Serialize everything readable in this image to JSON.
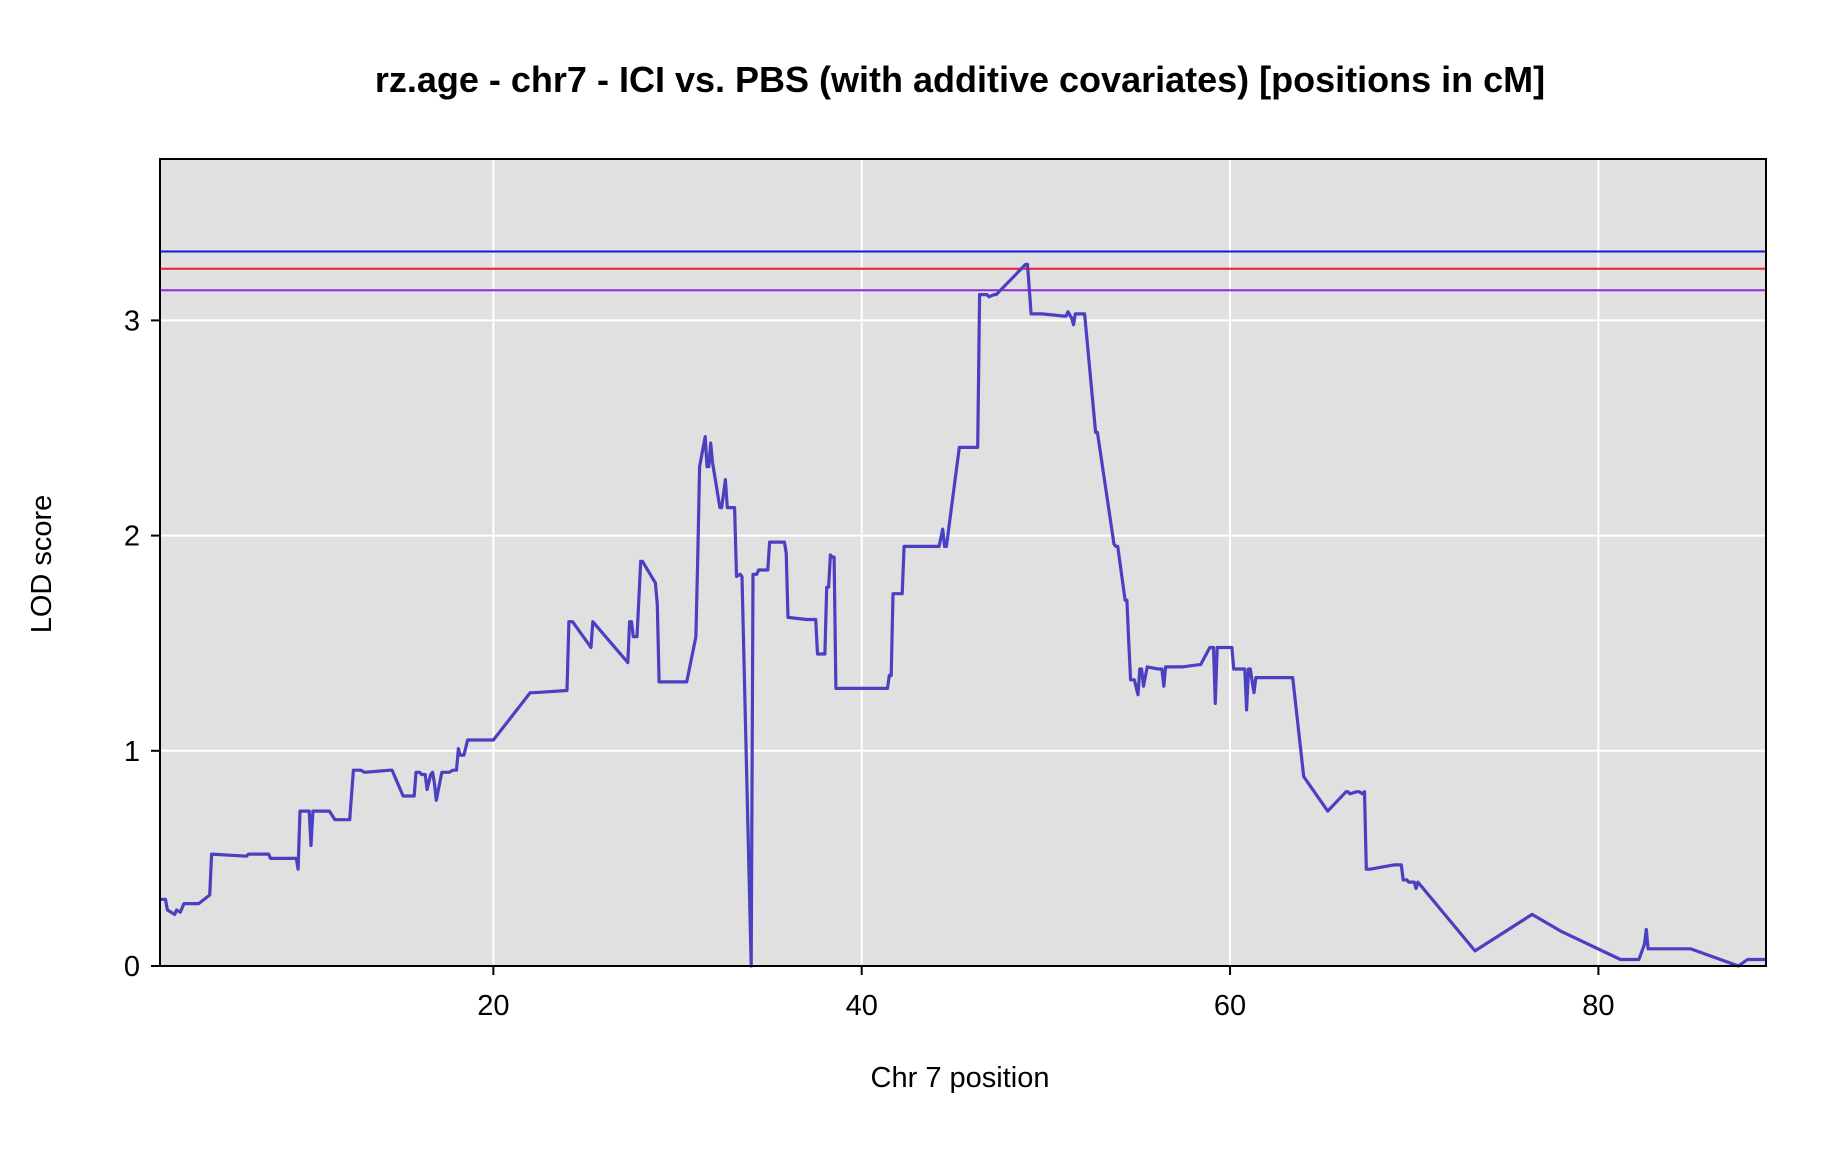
{
  "chart_data": {
    "type": "line",
    "title": "rz.age - chr7 - ICI vs. PBS (with additive covariates) [positions in cM]",
    "xlabel": "Chr 7 position",
    "ylabel": "LOD score",
    "xlim": [
      1.9,
      89.1
    ],
    "ylim": [
      0,
      3.75
    ],
    "xticks": [
      20,
      40,
      60,
      80
    ],
    "yticks": [
      0,
      1,
      2,
      3
    ],
    "grid": true,
    "background_color": "#e0e0e0",
    "grid_color": "#ffffff",
    "thresholds": [
      {
        "value": 3.32,
        "color": "#1a1ad6"
      },
      {
        "value": 3.24,
        "color": "#e8202a"
      },
      {
        "value": 3.14,
        "color": "#8a2be2"
      }
    ],
    "series": [
      {
        "color": "#4b3fc2",
        "x": [
          1.9,
          2.2,
          2.3,
          2.5,
          2.7,
          2.8,
          3.0,
          3.2,
          4.0,
          4.6,
          4.7,
          6.6,
          6.7,
          7.8,
          7.9,
          9.3,
          9.4,
          9.5,
          9.7,
          10.0,
          10.1,
          10.2,
          11.1,
          11.4,
          12.2,
          12.4,
          12.8,
          13.0,
          14.4,
          14.5,
          15.1,
          15.2,
          15.7,
          15.8,
          16.0,
          16.1,
          16.3,
          16.4,
          16.6,
          16.7,
          16.8,
          16.9,
          17.2,
          17.3,
          17.5,
          17.6,
          17.8,
          18.0,
          18.1,
          18.2,
          18.4,
          18.6,
          19.8,
          20.0,
          22.0,
          22.1,
          22.2,
          24.0,
          24.1,
          24.2,
          24.3,
          25.3,
          25.4,
          27.3,
          27.4,
          27.5,
          27.6,
          27.7,
          27.8,
          28.0,
          28.1,
          28.8,
          28.9,
          29.0,
          30.5,
          31.0,
          31.1,
          31.2,
          31.5,
          31.6,
          31.7,
          31.8,
          31.9,
          32.3,
          32.4,
          32.6,
          32.7,
          32.8,
          33.1,
          33.2,
          33.4,
          33.5,
          34.0,
          34.1,
          34.2,
          34.3,
          34.4,
          34.5,
          34.9,
          35.0,
          35.8,
          35.9,
          36.0,
          37.0,
          37.5,
          37.6,
          37.8,
          38.0,
          38.1,
          38.2,
          38.3,
          38.4,
          38.5,
          38.6,
          38.7,
          39.0,
          40.0,
          40.1,
          41.3,
          41.4,
          41.5,
          41.6,
          41.7,
          41.8,
          42.2,
          42.3,
          44.0,
          44.1,
          44.2,
          44.4,
          44.5,
          44.6,
          45.3,
          45.4,
          45.5,
          46.3,
          46.4,
          46.5,
          46.8,
          46.9,
          47.2,
          47.3,
          48.9,
          49.0,
          49.2,
          49.5,
          49.7,
          49.8,
          51.0,
          51.1,
          51.2,
          51.4,
          51.5,
          51.6,
          52.0,
          52.1,
          52.7,
          52.8,
          53.7,
          53.8,
          53.9,
          54.3,
          54.4,
          54.5,
          54.6,
          54.7,
          54.8,
          55.0,
          55.1,
          55.2,
          55.3,
          55.5,
          56.1,
          56.2,
          56.3,
          56.4,
          56.5,
          56.6,
          57.3,
          57.4,
          58.3,
          58.4,
          58.9,
          59.0,
          59.1,
          59.2,
          59.3,
          59.4,
          60.0,
          60.1,
          60.2,
          60.4,
          60.8,
          60.9,
          61.0,
          61.1,
          61.2,
          61.3,
          61.4,
          63.2,
          63.4,
          64.0,
          65.3,
          66.3,
          66.4,
          66.5,
          66.9,
          67.0,
          67.2,
          67.3,
          67.4,
          67.5,
          67.6,
          68.9,
          69.0,
          69.3,
          69.4,
          69.6,
          69.7,
          70.0,
          70.1,
          70.2,
          73.3,
          76.4,
          78.0,
          81.2,
          82.2,
          82.5,
          82.6,
          82.7,
          83.0,
          83.1,
          85.0,
          87.6,
          88.1,
          88.4,
          89.1
        ],
        "y": [
          0.31,
          0.31,
          0.26,
          0.25,
          0.24,
          0.26,
          0.25,
          0.29,
          0.29,
          0.33,
          0.52,
          0.51,
          0.52,
          0.52,
          0.5,
          0.5,
          0.45,
          0.72,
          0.72,
          0.72,
          0.56,
          0.72,
          0.72,
          0.68,
          0.68,
          0.91,
          0.91,
          0.9,
          0.91,
          0.91,
          0.79,
          0.79,
          0.79,
          0.9,
          0.9,
          0.89,
          0.89,
          0.82,
          0.89,
          0.9,
          0.85,
          0.77,
          0.9,
          0.9,
          0.9,
          0.9,
          0.91,
          0.91,
          1.01,
          0.98,
          0.98,
          1.05,
          1.05,
          1.05,
          1.27,
          1.27,
          1.27,
          1.28,
          1.6,
          1.6,
          1.6,
          1.48,
          1.6,
          1.41,
          1.6,
          1.6,
          1.53,
          1.53,
          1.53,
          1.88,
          1.88,
          1.78,
          1.68,
          1.32,
          1.32,
          1.53,
          1.91,
          2.32,
          2.46,
          2.32,
          2.32,
          2.43,
          2.34,
          2.13,
          2.13,
          2.26,
          2.13,
          2.13,
          2.13,
          1.81,
          1.82,
          1.81,
          0.0,
          1.82,
          1.82,
          1.82,
          1.84,
          1.84,
          1.84,
          1.97,
          1.97,
          1.92,
          1.62,
          1.61,
          1.61,
          1.45,
          1.45,
          1.45,
          1.76,
          1.76,
          1.91,
          1.9,
          1.9,
          1.29,
          1.29,
          1.29,
          1.29,
          1.29,
          1.29,
          1.29,
          1.35,
          1.35,
          1.73,
          1.73,
          1.73,
          1.95,
          1.95,
          1.95,
          1.95,
          2.03,
          1.95,
          1.95,
          2.41,
          2.41,
          2.41,
          2.41,
          3.12,
          3.12,
          3.12,
          3.11,
          3.12,
          3.12,
          3.26,
          3.26,
          3.03,
          3.03,
          3.03,
          3.03,
          3.02,
          3.02,
          3.04,
          3.01,
          2.98,
          3.03,
          3.03,
          3.03,
          2.48,
          2.48,
          1.96,
          1.95,
          1.95,
          1.7,
          1.7,
          1.5,
          1.33,
          1.33,
          1.33,
          1.26,
          1.38,
          1.38,
          1.3,
          1.39,
          1.38,
          1.38,
          1.38,
          1.3,
          1.39,
          1.39,
          1.39,
          1.39,
          1.4,
          1.4,
          1.48,
          1.48,
          1.48,
          1.22,
          1.48,
          1.48,
          1.48,
          1.48,
          1.38,
          1.38,
          1.38,
          1.19,
          1.38,
          1.38,
          1.32,
          1.27,
          1.34,
          1.34,
          1.34,
          0.88,
          0.72,
          0.81,
          0.81,
          0.8,
          0.81,
          0.81,
          0.8,
          0.81,
          0.45,
          0.45,
          0.45,
          0.47,
          0.47,
          0.47,
          0.4,
          0.4,
          0.39,
          0.39,
          0.36,
          0.39,
          0.07,
          0.24,
          0.16,
          0.03,
          0.03,
          0.1,
          0.17,
          0.08,
          0.08,
          0.08,
          0.08,
          0.0,
          0.03,
          0.03,
          0.03
        ]
      }
    ]
  }
}
